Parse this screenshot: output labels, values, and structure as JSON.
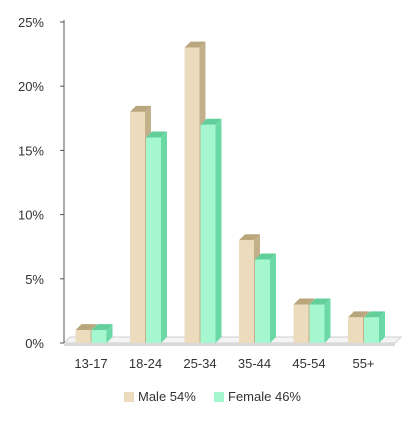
{
  "chart_data": {
    "type": "bar",
    "categories": [
      "13-17",
      "18-24",
      "25-34",
      "35-44",
      "45-54",
      "55+"
    ],
    "series": [
      {
        "name": "Male 54%",
        "values": [
          1,
          18,
          23,
          8,
          3,
          2
        ],
        "color": "#ecdcbd",
        "side_color": "#c2b08a",
        "top_color": "#b9a67d"
      },
      {
        "name": "Female 46%",
        "values": [
          1,
          16,
          17,
          6.5,
          3,
          2
        ],
        "color": "#a4f7cf",
        "side_color": "#6bd9a5",
        "top_color": "#62cf9b"
      }
    ],
    "yticks": [
      "0%",
      "5%",
      "10%",
      "15%",
      "20%",
      "25%"
    ],
    "ylim": [
      0,
      25
    ],
    "legend_position": "bottom",
    "grid": false
  }
}
